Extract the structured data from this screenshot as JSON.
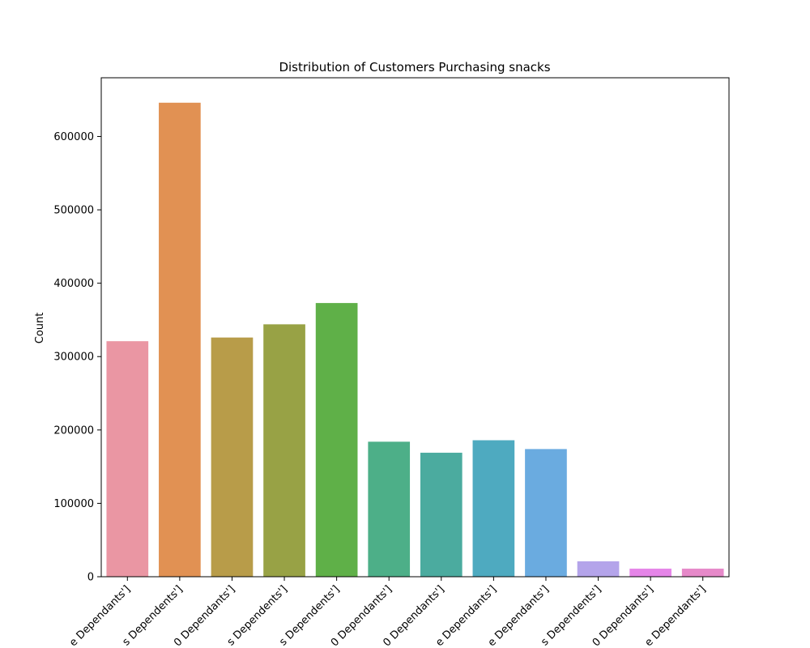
{
  "chart_data": {
    "type": "bar",
    "title": "Distribution of Customers Purchasing snacks",
    "xlabel": "",
    "ylabel": "Count",
    "ylim": [
      0,
      680000
    ],
    "yticks": [
      0,
      100000,
      200000,
      300000,
      400000,
      500000,
      600000
    ],
    "ytick_labels": [
      "0",
      "100000",
      "200000",
      "300000",
      "400000",
      "500000",
      "600000"
    ],
    "grid": false,
    "categories": [
      "e Dependants']",
      "s Dependents']",
      "0 Dependants']",
      "s Dependents']",
      "s Dependents']",
      "0 Dependants']",
      "0 Dependants']",
      "e Dependants']",
      "e Dependants']",
      "s Dependents']",
      "0 Dependants']",
      "e Dependants']"
    ],
    "values": [
      321000,
      646000,
      326000,
      344000,
      373000,
      184000,
      169000,
      186000,
      174000,
      21000,
      11000,
      11000
    ],
    "colors": [
      "#ea96a3",
      "#e19153",
      "#b89c49",
      "#98a245",
      "#5fb048",
      "#4daf88",
      "#4bab9f",
      "#4eaac0",
      "#6aabe0",
      "#b4a4ea",
      "#e585e8",
      "#e689c9"
    ]
  }
}
